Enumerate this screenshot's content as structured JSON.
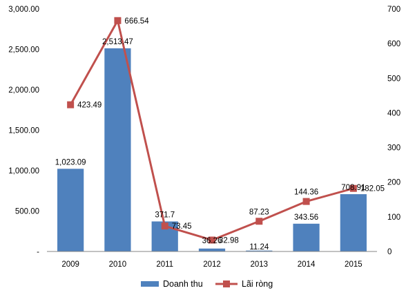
{
  "chart_data": {
    "type": "bar",
    "categories": [
      "2009",
      "2010",
      "2011",
      "2012",
      "2013",
      "2014",
      "2015"
    ],
    "series": [
      {
        "name": "Doanh thu",
        "type": "bar",
        "axis": "left",
        "color": "#4F81BD",
        "values": [
          1023.09,
          2513.47,
          371.7,
          36.26,
          11.24,
          343.56,
          708.91
        ],
        "labels": [
          "1,023.09",
          "2,513.47",
          "371.7",
          "36.26",
          "11.24",
          "343.56",
          "708.91"
        ]
      },
      {
        "name": "Lãi ròng",
        "type": "line",
        "axis": "right",
        "color": "#C0504D",
        "values": [
          423.49,
          666.54,
          73.45,
          32.98,
          87.23,
          144.36,
          182.05
        ],
        "labels": [
          "423.49",
          "666.54",
          "73.45",
          "32.98",
          "87.23",
          "144.36",
          "182.05"
        ]
      }
    ],
    "y_left": {
      "ylim": [
        0,
        3000
      ],
      "ticks": [
        0,
        500,
        1000,
        1500,
        2000,
        2500,
        3000
      ],
      "tick_labels": [
        "-",
        "500.00",
        "1,000.00",
        "1,500.00",
        "2,000.00",
        "2,500.00",
        "3,000.00"
      ]
    },
    "y_right": {
      "ylim": [
        0,
        700
      ],
      "ticks": [
        0,
        100,
        200,
        300,
        400,
        500,
        600,
        700
      ],
      "tick_labels": [
        "0",
        "100",
        "200",
        "300",
        "400",
        "500",
        "600",
        "700"
      ]
    },
    "grid": false,
    "legend": "bottom"
  }
}
